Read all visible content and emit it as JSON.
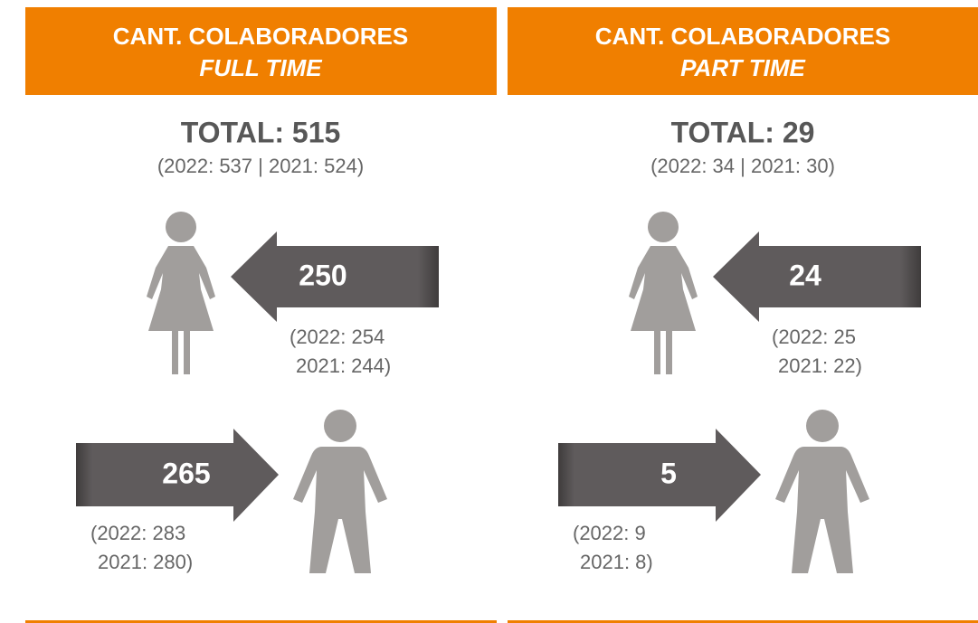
{
  "panels": [
    {
      "header": {
        "line1": "CANT. COLABORADORES",
        "line2": "FULL TIME"
      },
      "total": "TOTAL: 515",
      "total_previous": "(2022: 537 | 2021: 524)",
      "female": {
        "value": "250",
        "previous_line1": "(2022: 254",
        "previous_line2": "2021: 244)"
      },
      "male": {
        "value": "265",
        "previous_line1": "(2022: 283",
        "previous_line2": "2021: 280)"
      }
    },
    {
      "header": {
        "line1": "CANT. COLABORADORES",
        "line2": "PART TIME"
      },
      "total": "TOTAL: 29",
      "total_previous": "(2022: 34 | 2021: 30)",
      "female": {
        "value": "24",
        "previous_line1": "(2022: 25",
        "previous_line2": "2021: 22)"
      },
      "male": {
        "value": "5",
        "previous_line1": "(2022: 9",
        "previous_line2": "2021: 8)"
      }
    }
  ]
}
